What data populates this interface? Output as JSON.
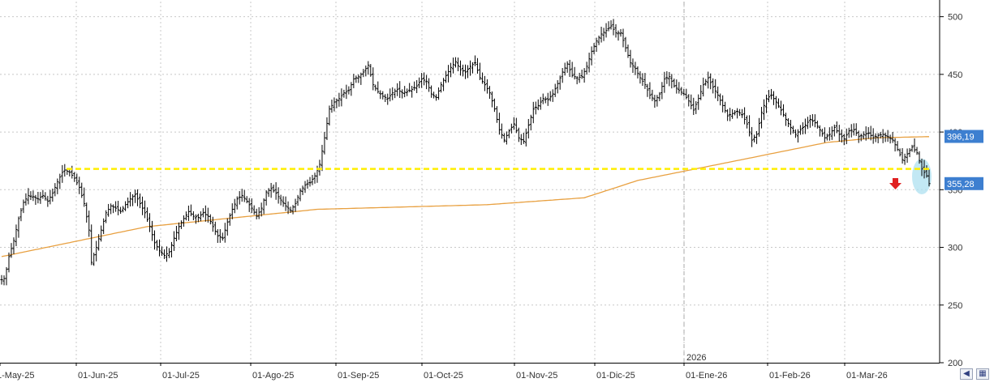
{
  "chart_data": {
    "type": "candlestick",
    "ylim": [
      200,
      505
    ],
    "yticks": [
      200,
      250,
      300,
      350,
      400,
      450,
      500
    ],
    "ytick_labels": [
      "200",
      "250",
      "300",
      "350",
      "400",
      "450",
      "500"
    ],
    "xtick_labels": [
      "1-May-25",
      "01-Jun-25",
      "01-Jul-25",
      "01-Ago-25",
      "01-Sep-25",
      "01-Oct-25",
      "01-Nov-25",
      "01-Dic-25",
      "01-Ene-26",
      "01-Feb-26",
      "01-Mar-26"
    ],
    "year_marker": "2026",
    "last_price_label": "355,28",
    "last_price": 355.28,
    "ma_label": "396,19",
    "ma_value": 396.19,
    "support_level": 368,
    "colors": {
      "grid": "#c8c8c8",
      "bars": "#000000",
      "moving_average": "#e8a040",
      "support_line": "#ffee00",
      "price_box": "#3d7fd0",
      "down_arrow": "#e02020",
      "highlight": "#aee0f0"
    },
    "grid": true,
    "price_anchors": [
      [
        0,
        272
      ],
      [
        1,
        273
      ],
      [
        2,
        281
      ],
      [
        3,
        292
      ],
      [
        5,
        306
      ],
      [
        7,
        325
      ],
      [
        9,
        339
      ],
      [
        11,
        345
      ],
      [
        13,
        344
      ],
      [
        15,
        342
      ],
      [
        17,
        345
      ],
      [
        19,
        340
      ],
      [
        21,
        347
      ],
      [
        23,
        357
      ],
      [
        25,
        365
      ],
      [
        26,
        367
      ],
      [
        28,
        365
      ],
      [
        30,
        360
      ],
      [
        32,
        352
      ],
      [
        34,
        338
      ],
      [
        36,
        315
      ],
      [
        37,
        287
      ],
      [
        39,
        300
      ],
      [
        41,
        315
      ],
      [
        43,
        330
      ],
      [
        45,
        336
      ],
      [
        47,
        334
      ],
      [
        49,
        331
      ],
      [
        51,
        337
      ],
      [
        53,
        342
      ],
      [
        55,
        346
      ],
      [
        57,
        338
      ],
      [
        59,
        330
      ],
      [
        61,
        318
      ],
      [
        63,
        304
      ],
      [
        65,
        297
      ],
      [
        67,
        293
      ],
      [
        69,
        296
      ],
      [
        71,
        308
      ],
      [
        73,
        318
      ],
      [
        75,
        325
      ],
      [
        77,
        331
      ],
      [
        79,
        327
      ],
      [
        81,
        326
      ],
      [
        83,
        330
      ],
      [
        85,
        327
      ],
      [
        87,
        318
      ],
      [
        89,
        310
      ],
      [
        91,
        308
      ],
      [
        93,
        322
      ],
      [
        95,
        333
      ],
      [
        97,
        342
      ],
      [
        99,
        345
      ],
      [
        101,
        340
      ],
      [
        103,
        334
      ],
      [
        105,
        327
      ],
      [
        107,
        334
      ],
      [
        109,
        348
      ],
      [
        111,
        351
      ],
      [
        113,
        347
      ],
      [
        115,
        341
      ],
      [
        117,
        336
      ],
      [
        119,
        332
      ],
      [
        121,
        338
      ],
      [
        123,
        349
      ],
      [
        125,
        354
      ],
      [
        127,
        356
      ],
      [
        129,
        362
      ],
      [
        131,
        372
      ],
      [
        133,
        395
      ],
      [
        135,
        420
      ],
      [
        137,
        426
      ],
      [
        139,
        429
      ],
      [
        141,
        434
      ],
      [
        143,
        436
      ],
      [
        145,
        446
      ],
      [
        147,
        448
      ],
      [
        149,
        452
      ],
      [
        151,
        458
      ],
      [
        153,
        441
      ],
      [
        155,
        435
      ],
      [
        157,
        431
      ],
      [
        159,
        429
      ],
      [
        161,
        434
      ],
      [
        163,
        437
      ],
      [
        165,
        434
      ],
      [
        167,
        435
      ],
      [
        169,
        437
      ],
      [
        171,
        440
      ],
      [
        173,
        446
      ],
      [
        175,
        444
      ],
      [
        177,
        433
      ],
      [
        179,
        430
      ],
      [
        181,
        441
      ],
      [
        183,
        449
      ],
      [
        185,
        456
      ],
      [
        187,
        461
      ],
      [
        189,
        454
      ],
      [
        191,
        452
      ],
      [
        193,
        457
      ],
      [
        195,
        460
      ],
      [
        197,
        447
      ],
      [
        199,
        441
      ],
      [
        201,
        434
      ],
      [
        203,
        420
      ],
      [
        205,
        402
      ],
      [
        207,
        393
      ],
      [
        209,
        401
      ],
      [
        211,
        407
      ],
      [
        213,
        395
      ],
      [
        215,
        392
      ],
      [
        217,
        406
      ],
      [
        219,
        420
      ],
      [
        221,
        423
      ],
      [
        223,
        429
      ],
      [
        225,
        428
      ],
      [
        227,
        433
      ],
      [
        229,
        442
      ],
      [
        231,
        452
      ],
      [
        233,
        459
      ],
      [
        235,
        449
      ],
      [
        237,
        447
      ],
      [
        239,
        448
      ],
      [
        241,
        457
      ],
      [
        243,
        470
      ],
      [
        245,
        479
      ],
      [
        247,
        485
      ],
      [
        249,
        488
      ],
      [
        251,
        492
      ],
      [
        253,
        486
      ],
      [
        255,
        486
      ],
      [
        257,
        473
      ],
      [
        259,
        460
      ],
      [
        261,
        455
      ],
      [
        263,
        447
      ],
      [
        265,
        441
      ],
      [
        267,
        432
      ],
      [
        269,
        427
      ],
      [
        271,
        433
      ],
      [
        273,
        446
      ],
      [
        275,
        448
      ],
      [
        277,
        440
      ],
      [
        279,
        436
      ],
      [
        281,
        433
      ],
      [
        283,
        427
      ],
      [
        285,
        419
      ],
      [
        287,
        429
      ],
      [
        289,
        441
      ],
      [
        291,
        447
      ],
      [
        293,
        439
      ],
      [
        295,
        432
      ],
      [
        297,
        423
      ],
      [
        299,
        414
      ],
      [
        301,
        416
      ],
      [
        303,
        418
      ],
      [
        305,
        415
      ],
      [
        307,
        407
      ],
      [
        309,
        393
      ],
      [
        311,
        398
      ],
      [
        313,
        417
      ],
      [
        315,
        429
      ],
      [
        317,
        432
      ],
      [
        319,
        426
      ],
      [
        321,
        419
      ],
      [
        323,
        411
      ],
      [
        325,
        404
      ],
      [
        327,
        398
      ],
      [
        329,
        402
      ],
      [
        331,
        406
      ],
      [
        333,
        411
      ],
      [
        335,
        408
      ],
      [
        337,
        402
      ],
      [
        339,
        395
      ],
      [
        341,
        398
      ],
      [
        343,
        404
      ],
      [
        345,
        398
      ],
      [
        347,
        394
      ],
      [
        349,
        401
      ],
      [
        351,
        402
      ],
      [
        353,
        396
      ],
      [
        355,
        398
      ],
      [
        357,
        399
      ],
      [
        359,
        395
      ],
      [
        361,
        397
      ],
      [
        363,
        398
      ],
      [
        365,
        396
      ],
      [
        367,
        393
      ],
      [
        369,
        385
      ],
      [
        371,
        376
      ],
      [
        373,
        381
      ],
      [
        375,
        387
      ],
      [
        377,
        382
      ],
      [
        379,
        368
      ],
      [
        381,
        362
      ],
      [
        382,
        355.28
      ]
    ]
  }
}
